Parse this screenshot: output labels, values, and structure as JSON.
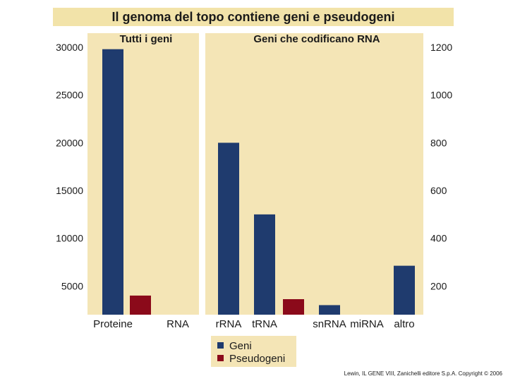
{
  "title": "Il genoma del topo contiene geni e pseudogeni",
  "copyright": "Lewin, IL GENE VIII,  Zanichelli editore S.p.A.  Copyright © 2006",
  "colors": {
    "geni": "#1f3b6e",
    "pseudogeni": "#8b0a1a",
    "panel": "#f4e5b6",
    "band": "#f2e3a9"
  },
  "legend": [
    {
      "label": "Geni",
      "color": "#1f3b6e"
    },
    {
      "label": "Pseudogeni",
      "color": "#8b0a1a"
    }
  ],
  "chart_data": [
    {
      "type": "bar",
      "title": "Tutti i geni",
      "categories": [
        "Proteine",
        "RNA"
      ],
      "series": [
        {
          "name": "Geni",
          "values": [
            29800,
            2000
          ]
        },
        {
          "name": "Pseudogeni",
          "values": [
            4000,
            null
          ]
        }
      ],
      "ylim": [
        2000,
        30000
      ],
      "yticks": [
        5000,
        10000,
        15000,
        20000,
        25000,
        30000
      ],
      "ytick_labels": [
        "5000",
        "10000",
        "15000",
        "20000",
        "25000",
        "30000"
      ],
      "axis_side": "left"
    },
    {
      "type": "bar",
      "title": "Geni che codificano RNA",
      "categories": [
        "rRNA",
        "tRNA",
        "snRNA",
        "miRNA",
        "altro"
      ],
      "series": [
        {
          "name": "Geni",
          "values": [
            800,
            500,
            120,
            75,
            285
          ]
        },
        {
          "name": "Pseudogeni",
          "values": [
            null,
            145,
            null,
            null,
            null
          ]
        }
      ],
      "ylim": [
        80,
        1200
      ],
      "yticks": [
        200,
        400,
        600,
        800,
        1000,
        1200
      ],
      "ytick_labels": [
        "200",
        "400",
        "600",
        "800",
        "1000",
        "1200"
      ],
      "axis_side": "right"
    }
  ]
}
